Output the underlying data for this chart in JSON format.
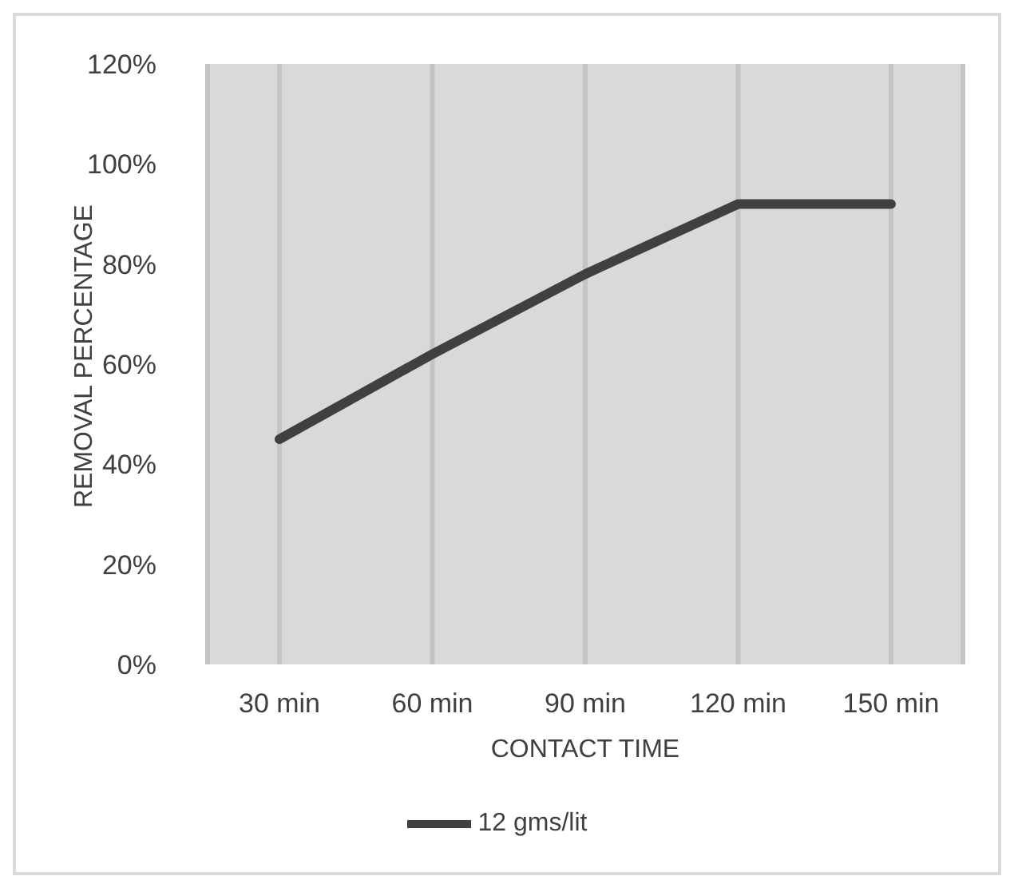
{
  "chart_data": {
    "type": "line",
    "xlabel": "CONTACT TIME",
    "ylabel": "REMOVAL PERCENTAGE",
    "categories": [
      "30 min",
      "60 min",
      "90 min",
      "120 min",
      "150 min"
    ],
    "series": [
      {
        "name": "12 gms/lit",
        "color": "#404040",
        "values": [
          45,
          62,
          78,
          92,
          92
        ]
      }
    ],
    "ylim": [
      0,
      120
    ],
    "yticks": [
      {
        "value": 0,
        "label": "0%"
      },
      {
        "value": 20,
        "label": "20%"
      },
      {
        "value": 40,
        "label": "40%"
      },
      {
        "value": 60,
        "label": "60%"
      },
      {
        "value": 80,
        "label": "80%"
      },
      {
        "value": 100,
        "label": "100%"
      },
      {
        "value": 120,
        "label": "120%"
      }
    ],
    "grid": "x",
    "legend": "bottom",
    "marker": "none",
    "line_style": "solid"
  }
}
